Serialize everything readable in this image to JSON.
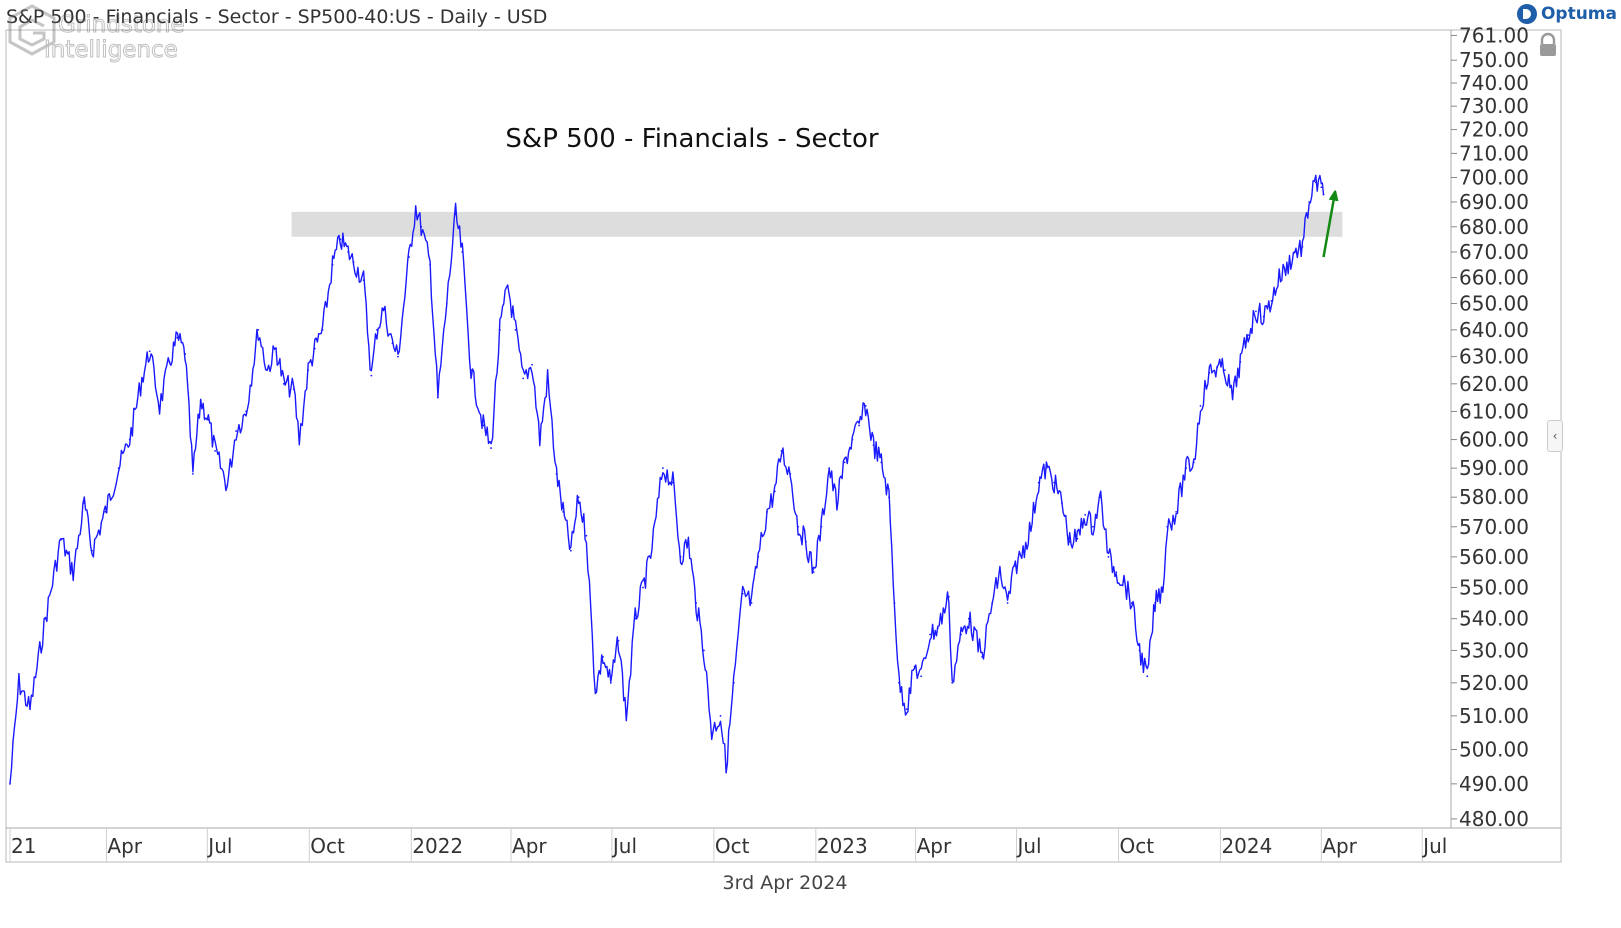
{
  "header": {
    "title": "S&P 500 - Financials - Sector - SP500-40:US - Daily - USD"
  },
  "brand": {
    "name": "Optuma"
  },
  "footer": {
    "date": "3rd Apr 2024"
  },
  "watermark": {
    "line1": "Grindstone",
    "line2": "Intelligence"
  },
  "colors": {
    "series": "#1a1aff",
    "resistance_band": "#d9d9d9",
    "arrow": "#138a13",
    "grid": "#cccccc"
  },
  "icons": {
    "lock": "lock-icon",
    "collapse": "chevron-left-icon"
  },
  "chart_data": {
    "type": "line",
    "title": "S&P 500 - Financials - Sector",
    "xlabel": "",
    "ylabel": "",
    "x_start": "2021-01-04",
    "x_tick_labels": [
      {
        "label": "21",
        "date": "2021-01-04"
      },
      {
        "label": "Apr",
        "date": "2021-04-01"
      },
      {
        "label": "Jul",
        "date": "2021-07-01"
      },
      {
        "label": "Oct",
        "date": "2021-10-01"
      },
      {
        "label": "2022",
        "date": "2022-01-01"
      },
      {
        "label": "Apr",
        "date": "2022-04-01"
      },
      {
        "label": "Jul",
        "date": "2022-07-01"
      },
      {
        "label": "Oct",
        "date": "2022-10-01"
      },
      {
        "label": "2023",
        "date": "2023-01-01"
      },
      {
        "label": "Apr",
        "date": "2023-04-01"
      },
      {
        "label": "Jul",
        "date": "2023-07-01"
      },
      {
        "label": "Oct",
        "date": "2023-10-01"
      },
      {
        "label": "2024",
        "date": "2024-01-01"
      },
      {
        "label": "Apr",
        "date": "2024-04-01"
      },
      {
        "label": "Jul",
        "date": "2024-07-01"
      }
    ],
    "y_tick_labels": [
      "761.00",
      "750.00",
      "740.00",
      "730.00",
      "720.00",
      "710.00",
      "700.00",
      "690.00",
      "680.00",
      "670.00",
      "660.00",
      "650.00",
      "640.00",
      "630.00",
      "620.00",
      "610.00",
      "600.00",
      "590.00",
      "580.00",
      "570.00",
      "560.00",
      "550.00",
      "540.00",
      "530.00",
      "520.00",
      "510.00",
      "500.00",
      "490.00",
      "480.00"
    ],
    "y_scale": "log",
    "ylim": [
      478,
      763
    ],
    "resistance_zone": {
      "from": "2021-09-15",
      "to": "2024-04-20",
      "low": 676,
      "high": 686
    },
    "arrow": {
      "from_date": "2024-04-03",
      "from_value": 668,
      "to_date": "2024-04-13",
      "to_value": 693
    },
    "series": [
      {
        "values": [
          [
            "2021-01-04",
            490
          ],
          [
            "2021-01-12",
            520
          ],
          [
            "2021-01-22",
            512
          ],
          [
            "2021-02-05",
            540
          ],
          [
            "2021-02-19",
            566
          ],
          [
            "2021-03-02",
            555
          ],
          [
            "2021-03-12",
            578
          ],
          [
            "2021-03-19",
            562
          ],
          [
            "2021-03-31",
            575
          ],
          [
            "2021-04-12",
            590
          ],
          [
            "2021-04-22",
            600
          ],
          [
            "2021-05-03",
            622
          ],
          [
            "2021-05-10",
            632
          ],
          [
            "2021-05-19",
            612
          ],
          [
            "2021-05-28",
            628
          ],
          [
            "2021-06-04",
            637
          ],
          [
            "2021-06-11",
            631
          ],
          [
            "2021-06-18",
            588
          ],
          [
            "2021-06-25",
            614
          ],
          [
            "2021-07-02",
            607
          ],
          [
            "2021-07-08",
            596
          ],
          [
            "2021-07-19",
            584
          ],
          [
            "2021-07-27",
            603
          ],
          [
            "2021-08-05",
            610
          ],
          [
            "2021-08-16",
            640
          ],
          [
            "2021-08-24",
            625
          ],
          [
            "2021-09-01",
            633
          ],
          [
            "2021-09-08",
            620
          ],
          [
            "2021-09-17",
            618
          ],
          [
            "2021-09-22",
            600
          ],
          [
            "2021-09-30",
            625
          ],
          [
            "2021-10-06",
            633
          ],
          [
            "2021-10-13",
            640
          ],
          [
            "2021-10-22",
            665
          ],
          [
            "2021-10-29",
            675
          ],
          [
            "2021-11-05",
            670
          ],
          [
            "2021-11-10",
            666
          ],
          [
            "2021-11-19",
            659
          ],
          [
            "2021-11-26",
            623
          ],
          [
            "2021-12-01",
            640
          ],
          [
            "2021-12-07",
            648
          ],
          [
            "2021-12-15",
            635
          ],
          [
            "2021-12-20",
            630
          ],
          [
            "2021-12-30",
            668
          ],
          [
            "2022-01-05",
            688
          ],
          [
            "2022-01-10",
            680
          ],
          [
            "2022-01-18",
            665
          ],
          [
            "2022-01-25",
            615
          ],
          [
            "2022-02-02",
            650
          ],
          [
            "2022-02-10",
            685
          ],
          [
            "2022-02-16",
            670
          ],
          [
            "2022-02-24",
            625
          ],
          [
            "2022-03-07",
            605
          ],
          [
            "2022-03-14",
            597
          ],
          [
            "2022-03-22",
            640
          ],
          [
            "2022-03-29",
            657
          ],
          [
            "2022-04-05",
            640
          ],
          [
            "2022-04-12",
            622
          ],
          [
            "2022-04-20",
            627
          ],
          [
            "2022-04-27",
            600
          ],
          [
            "2022-05-04",
            622
          ],
          [
            "2022-05-12",
            588
          ],
          [
            "2022-05-18",
            575
          ],
          [
            "2022-05-25",
            562
          ],
          [
            "2022-06-01",
            580
          ],
          [
            "2022-06-08",
            567
          ],
          [
            "2022-06-16",
            518
          ],
          [
            "2022-06-23",
            528
          ],
          [
            "2022-06-30",
            520
          ],
          [
            "2022-07-07",
            533
          ],
          [
            "2022-07-14",
            510
          ],
          [
            "2022-07-22",
            540
          ],
          [
            "2022-07-29",
            550
          ],
          [
            "2022-08-05",
            560
          ],
          [
            "2022-08-16",
            590
          ],
          [
            "2022-08-25",
            585
          ],
          [
            "2022-09-01",
            560
          ],
          [
            "2022-09-08",
            565
          ],
          [
            "2022-09-15",
            545
          ],
          [
            "2022-09-22",
            530
          ],
          [
            "2022-09-29",
            505
          ],
          [
            "2022-10-07",
            510
          ],
          [
            "2022-10-12",
            495
          ],
          [
            "2022-10-19",
            520
          ],
          [
            "2022-10-27",
            548
          ],
          [
            "2022-11-04",
            545
          ],
          [
            "2022-11-10",
            560
          ],
          [
            "2022-11-18",
            575
          ],
          [
            "2022-11-25",
            582
          ],
          [
            "2022-12-01",
            596
          ],
          [
            "2022-12-09",
            588
          ],
          [
            "2022-12-16",
            570
          ],
          [
            "2022-12-23",
            565
          ],
          [
            "2022-12-30",
            555
          ],
          [
            "2023-01-06",
            570
          ],
          [
            "2023-01-13",
            590
          ],
          [
            "2023-01-20",
            578
          ],
          [
            "2023-01-27",
            592
          ],
          [
            "2023-02-03",
            600
          ],
          [
            "2023-02-09",
            605
          ],
          [
            "2023-02-15",
            612
          ],
          [
            "2023-02-22",
            598
          ],
          [
            "2023-03-01",
            592
          ],
          [
            "2023-03-08",
            580
          ],
          [
            "2023-03-13",
            545
          ],
          [
            "2023-03-17",
            520
          ],
          [
            "2023-03-24",
            512
          ],
          [
            "2023-03-31",
            525
          ],
          [
            "2023-04-06",
            522
          ],
          [
            "2023-04-14",
            535
          ],
          [
            "2023-04-21",
            537
          ],
          [
            "2023-05-01",
            547
          ],
          [
            "2023-05-04",
            520
          ],
          [
            "2023-05-12",
            535
          ],
          [
            "2023-05-19",
            540
          ],
          [
            "2023-05-31",
            528
          ],
          [
            "2023-06-09",
            545
          ],
          [
            "2023-06-16",
            555
          ],
          [
            "2023-06-23",
            545
          ],
          [
            "2023-06-30",
            557
          ],
          [
            "2023-07-07",
            562
          ],
          [
            "2023-07-14",
            570
          ],
          [
            "2023-07-21",
            585
          ],
          [
            "2023-07-28",
            590
          ],
          [
            "2023-08-04",
            585
          ],
          [
            "2023-08-11",
            578
          ],
          [
            "2023-08-18",
            565
          ],
          [
            "2023-08-25",
            566
          ],
          [
            "2023-09-01",
            574
          ],
          [
            "2023-09-08",
            570
          ],
          [
            "2023-09-15",
            580
          ],
          [
            "2023-09-22",
            560
          ],
          [
            "2023-09-29",
            555
          ],
          [
            "2023-10-06",
            552
          ],
          [
            "2023-10-13",
            545
          ],
          [
            "2023-10-20",
            530
          ],
          [
            "2023-10-27",
            522
          ],
          [
            "2023-11-03",
            545
          ],
          [
            "2023-11-10",
            550
          ],
          [
            "2023-11-14",
            570
          ],
          [
            "2023-11-22",
            575
          ],
          [
            "2023-12-01",
            590
          ],
          [
            "2023-12-08",
            592
          ],
          [
            "2023-12-14",
            612
          ],
          [
            "2023-12-22",
            624
          ],
          [
            "2023-12-29",
            626
          ],
          [
            "2024-01-05",
            625
          ],
          [
            "2024-01-12",
            615
          ],
          [
            "2024-01-19",
            628
          ],
          [
            "2024-01-26",
            638
          ],
          [
            "2024-02-02",
            647
          ],
          [
            "2024-02-09",
            645
          ],
          [
            "2024-02-16",
            651
          ],
          [
            "2024-02-23",
            660
          ],
          [
            "2024-03-01",
            664
          ],
          [
            "2024-03-08",
            670
          ],
          [
            "2024-03-15",
            672
          ],
          [
            "2024-03-21",
            690
          ],
          [
            "2024-03-27",
            698
          ],
          [
            "2024-04-01",
            696
          ],
          [
            "2024-04-03",
            693
          ]
        ]
      }
    ]
  }
}
